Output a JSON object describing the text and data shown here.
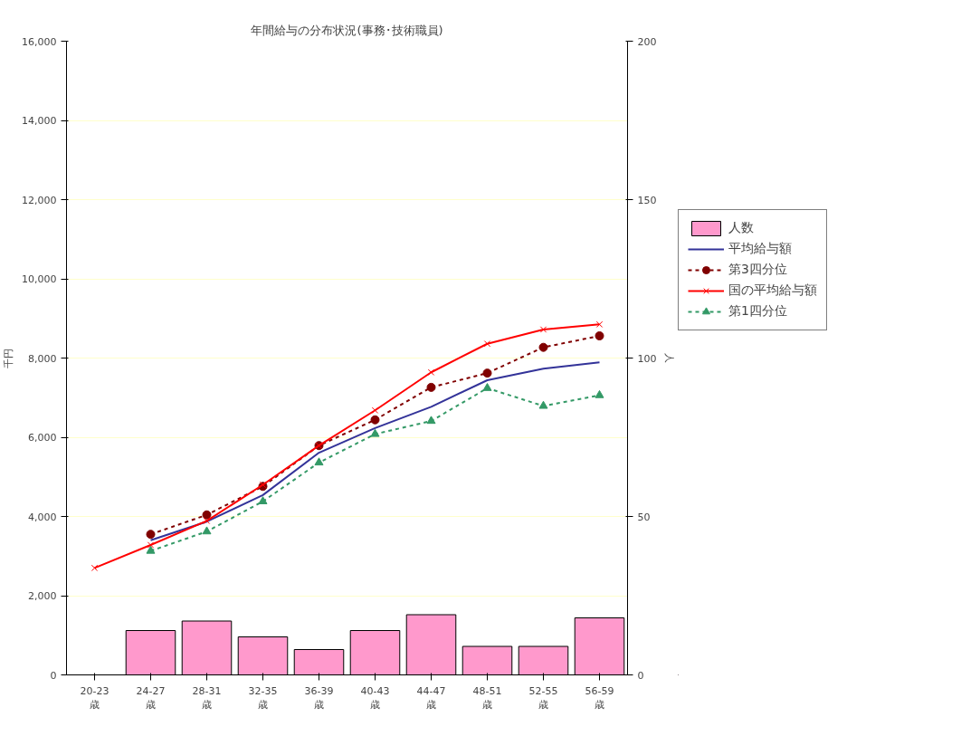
{
  "chart_data": {
    "type": "line",
    "title": "年間給与の分布状況(事務･技術職員)",
    "ylabel": "千円",
    "y2label": "人",
    "categories": [
      "20-23\n歳",
      "24-27\n歳",
      "28-31\n歳",
      "32-35\n歳",
      "36-39\n歳",
      "40-43\n歳",
      "44-47\n歳",
      "48-51\n歳",
      "52-55\n歳",
      "56-59\n歳"
    ],
    "series": [
      {
        "name": "人数",
        "type": "bar",
        "axis": "y2",
        "color": "#ff99cc",
        "values": [
          null,
          14,
          17,
          12,
          8,
          14,
          19,
          9,
          9,
          18
        ]
      },
      {
        "name": "平均給与額",
        "color": "#333399",
        "marker": "none",
        "line_style": "solid",
        "values": [
          null,
          3400,
          3870,
          4540,
          5610,
          6230,
          6770,
          7440,
          7730,
          7890
        ]
      },
      {
        "name": "第3四分位",
        "color": "#800000",
        "marker": "circle",
        "line_style": "dashed",
        "values": [
          null,
          3550,
          4040,
          4760,
          5790,
          6440,
          7260,
          7620,
          8270,
          8560
        ]
      },
      {
        "name": "国の平均給与額",
        "color": "#ff0000",
        "marker": "cross",
        "line_style": "solid",
        "values": [
          2700,
          3280,
          3890,
          4800,
          5790,
          6680,
          7640,
          8360,
          8720,
          8850
        ]
      },
      {
        "name": "第1四分位",
        "color": "#339966",
        "marker": "triangle",
        "line_style": "dashed",
        "values": [
          null,
          3130,
          3620,
          4380,
          5360,
          6080,
          6410,
          7240,
          6790,
          7060
        ]
      }
    ],
    "ylim": [
      0,
      16000
    ],
    "yticks": [
      0,
      {
        "value": 2000,
        "label": "2,000"
      },
      {
        "value": 4000,
        "label": "4,000"
      },
      {
        "value": 6000,
        "label": "6,000"
      },
      {
        "value": 8000,
        "label": "8,000"
      },
      {
        "value": 10000,
        "label": "10,000"
      },
      {
        "value": 12000,
        "label": "12,000"
      },
      {
        "value": 14000,
        "label": "14,000"
      },
      {
        "value": 16000,
        "label": "16,000"
      }
    ],
    "y2lim": [
      0,
      200
    ],
    "y2ticks": [
      0,
      50,
      100,
      150,
      200
    ],
    "grid": "y",
    "legend": "right"
  }
}
